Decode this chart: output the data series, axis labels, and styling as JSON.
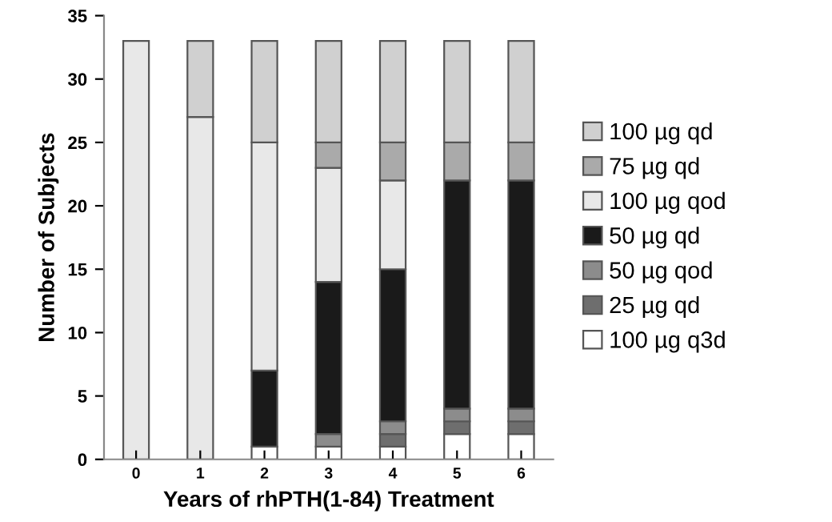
{
  "chart_data": {
    "type": "bar",
    "stacked": true,
    "xlabel": "Years of rhPTH(1-84) Treatment",
    "ylabel": "Number of Subjects",
    "categories": [
      "0",
      "1",
      "2",
      "3",
      "4",
      "5",
      "6"
    ],
    "series": [
      {
        "name": "100 µg q3d",
        "color": "#ffffff",
        "values": [
          null,
          null,
          1,
          1,
          1,
          2,
          2
        ]
      },
      {
        "name": "25 µg qd",
        "color": "#6e6e6e",
        "values": [
          null,
          null,
          null,
          null,
          1,
          1,
          1
        ]
      },
      {
        "name": "50 µg qod",
        "color": "#8c8c8c",
        "values": [
          null,
          null,
          null,
          1,
          1,
          1,
          1
        ]
      },
      {
        "name": "50 µg qd",
        "color": "#1a1a1a",
        "values": [
          null,
          null,
          6,
          12,
          12,
          18,
          18
        ]
      },
      {
        "name": "100 µg qod",
        "color": "#e8e8e8",
        "values": [
          33,
          27,
          18,
          9,
          7,
          null,
          null
        ]
      },
      {
        "name": "75 µg qd",
        "color": "#aaaaaa",
        "values": [
          null,
          null,
          null,
          2,
          3,
          3,
          3
        ]
      },
      {
        "name": "100 µg qd",
        "color": "#d0d0d0",
        "values": [
          null,
          6,
          8,
          8,
          8,
          8,
          8
        ]
      }
    ],
    "ylim": [
      0,
      35
    ],
    "yticks": [
      0,
      5,
      10,
      15,
      20,
      25,
      30,
      35
    ],
    "grid": false,
    "legend": "right"
  }
}
